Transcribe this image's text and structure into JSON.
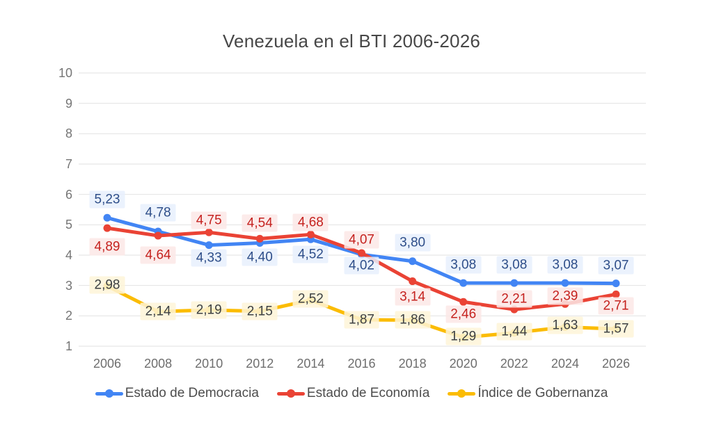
{
  "chart_data": {
    "type": "line",
    "title": "Venezuela en el BTI 2006-2026",
    "categories": [
      "2006",
      "2008",
      "2010",
      "2012",
      "2014",
      "2016",
      "2018",
      "2020",
      "2022",
      "2024",
      "2026"
    ],
    "ylim": [
      1,
      10
    ],
    "yticks": [
      "1",
      "2",
      "3",
      "4",
      "5",
      "6",
      "7",
      "8",
      "9",
      "10"
    ],
    "grid": true,
    "gridline_color": "#e2e2e2",
    "legend_position": "bottom",
    "decimal_separator": ",",
    "series": [
      {
        "name": "Estado de Democracia",
        "color": "#4285F4",
        "label_color": "#2E4E89",
        "label_bg": "rgba(232,240,253,0.85)",
        "values": [
          5.23,
          4.78,
          4.33,
          4.4,
          4.52,
          4.02,
          3.8,
          3.08,
          3.08,
          3.08,
          3.07
        ],
        "labels": [
          "5,23",
          "4,78",
          "4,33",
          "4,40",
          "4,52",
          "4,02",
          "3,80",
          "3,08",
          "3,08",
          "3,08",
          "3,07"
        ],
        "label_dy": [
          -26,
          -27,
          18,
          20,
          22,
          16,
          -27,
          -26,
          -26,
          -26,
          -26
        ]
      },
      {
        "name": "Estado de Economía",
        "color": "#EA4335",
        "label_color": "#C5221F",
        "label_bg": "rgba(252,232,230,0.85)",
        "values": [
          4.89,
          4.64,
          4.75,
          4.54,
          4.68,
          4.07,
          3.14,
          2.46,
          2.21,
          2.39,
          2.71
        ],
        "labels": [
          "4,89",
          "4,64",
          "4,75",
          "4,54",
          "4,68",
          "4,07",
          "3,14",
          "2,46",
          "2,21",
          "2,39",
          "2,71"
        ],
        "label_dy": [
          27,
          28,
          -17,
          -22,
          -17,
          -19,
          22,
          18,
          -15,
          -11,
          17
        ]
      },
      {
        "name": "Índice de Gobernanza",
        "color": "#FBBC04",
        "label_color": "#3C4043",
        "label_bg": "rgba(254,244,216,0.85)",
        "values": [
          2.98,
          2.14,
          2.19,
          2.15,
          2.52,
          1.87,
          1.86,
          1.29,
          1.44,
          1.63,
          1.57
        ],
        "labels": [
          "2,98",
          "2,14",
          "2,19",
          "2,15",
          "2,52",
          "1,87",
          "1,86",
          "1,29",
          "1,44",
          "1,63",
          "1,57"
        ],
        "label_dy": [
          -2,
          0,
          0,
          0,
          -2,
          0,
          0,
          -1,
          -2,
          -2,
          0
        ]
      }
    ]
  }
}
